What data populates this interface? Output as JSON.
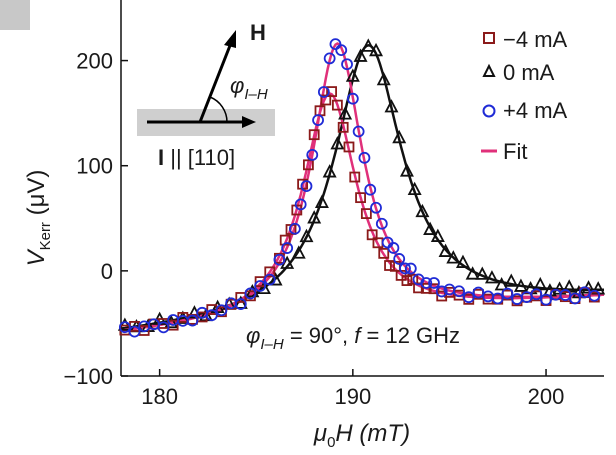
{
  "chart_data": {
    "type": "scatter",
    "panel_label": "",
    "xlabel": "μ0H (mT)",
    "xlabel_parts": {
      "mu": "μ",
      "sub": "0",
      "rest": "H (mT)"
    },
    "ylabel_parts": {
      "v": "V",
      "sub": "Kerr",
      "rest": " (μV)"
    },
    "xlim": [
      178,
      203
    ],
    "ylim": [
      -100,
      250
    ],
    "xticks": [
      180,
      190,
      200
    ],
    "yticks": [
      -100,
      0,
      100,
      200
    ],
    "xtick_labels": [
      "180",
      "190",
      "200"
    ],
    "ytick_labels": [
      "−100",
      "0",
      "100",
      "200"
    ],
    "legend_position": "top-right",
    "series": [
      {
        "name": "−4 mA",
        "marker": "square",
        "color": "#8b1a1a",
        "fit": {
          "H0": 188.8,
          "dH": 1.7,
          "A": 215,
          "offset": -62,
          "slope": 1.45,
          "ref": 178
        },
        "x": [
          178.2,
          178.7,
          179.2,
          179.7,
          180.2,
          180.7,
          181.2,
          181.7,
          182.2,
          182.7,
          183.2,
          183.7,
          184.2,
          184.7,
          185.2,
          185.7,
          186.2,
          186.5,
          186.8,
          187.1,
          187.4,
          187.7,
          188.0,
          188.3,
          188.6,
          188.9,
          189.2,
          189.5,
          189.8,
          190.1,
          190.4,
          190.7,
          191.0,
          191.3,
          191.6,
          191.9,
          192.2,
          192.5,
          192.8,
          193.1,
          193.4,
          193.8,
          194.2,
          194.6,
          195.0,
          195.5,
          196.0,
          196.5,
          197.0,
          197.5,
          198.0,
          198.5,
          199.0,
          199.5,
          200.0,
          200.5,
          201.0,
          201.5,
          202.0,
          202.5
        ]
      },
      {
        "name": "0 mA",
        "marker": "triangle",
        "color": "#111111",
        "fit": {
          "H0": 190.8,
          "dH": 2.15,
          "A": 258,
          "offset": -62,
          "slope": 1.45,
          "ref": 178
        },
        "x": [
          178.2,
          178.8,
          179.4,
          180.0,
          180.6,
          181.2,
          181.8,
          182.4,
          183.0,
          183.6,
          184.2,
          184.8,
          185.4,
          186.0,
          186.6,
          187.2,
          187.6,
          188.0,
          188.4,
          188.8,
          189.2,
          189.6,
          190.0,
          190.4,
          190.8,
          191.2,
          191.6,
          192.0,
          192.4,
          192.8,
          193.2,
          193.6,
          194.0,
          194.4,
          194.8,
          195.2,
          195.7,
          196.2,
          196.7,
          197.2,
          197.7,
          198.2,
          198.7,
          199.2,
          199.7,
          200.2,
          200.7,
          201.2,
          201.7,
          202.2,
          202.7
        ]
      },
      {
        "name": "+4 mA",
        "marker": "circle",
        "color": "#1f2bd6",
        "fit": {
          "H0": 189.2,
          "dH": 1.6,
          "A": 262,
          "offset": -62,
          "slope": 1.45,
          "ref": 178
        },
        "x": [
          178.2,
          178.7,
          179.2,
          179.7,
          180.2,
          180.7,
          181.2,
          181.7,
          182.2,
          182.7,
          183.2,
          183.7,
          184.2,
          184.7,
          185.2,
          185.7,
          186.2,
          186.6,
          187.0,
          187.3,
          187.6,
          187.9,
          188.2,
          188.5,
          188.8,
          189.1,
          189.4,
          189.7,
          190.0,
          190.3,
          190.6,
          190.9,
          191.2,
          191.5,
          191.8,
          192.1,
          192.4,
          192.7,
          193.0,
          193.4,
          193.8,
          194.2,
          194.6,
          195.0,
          195.5,
          196.0,
          196.5,
          197.0,
          197.5,
          198.0,
          198.5,
          199.0,
          199.5,
          200.0,
          200.5,
          201.0,
          201.5,
          202.0,
          202.5
        ]
      },
      {
        "name": "Fit",
        "marker": "line",
        "color": "#e0307a"
      }
    ]
  },
  "annotations": {
    "h_label": "H",
    "phi_label": {
      "phi": "φ",
      "sub": "I–H"
    },
    "current_label": {
      "bold": "I",
      "rest": " || [110]"
    },
    "condition": {
      "phi": "φ",
      "sub": "I–H",
      "mid": " = 90°, ",
      "f": "f",
      "rest": " = 12 GHz"
    }
  }
}
